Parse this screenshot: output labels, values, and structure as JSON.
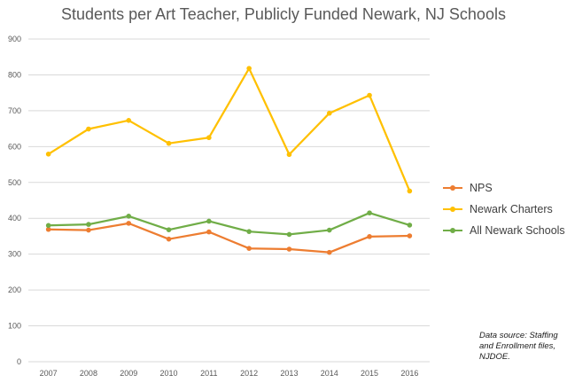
{
  "chart_data": {
    "type": "line",
    "title": "Students per Art Teacher, Publicly Funded Newark, NJ Schools",
    "xlabel": "",
    "ylabel": "",
    "categories": [
      "2007",
      "2008",
      "2009",
      "2010",
      "2011",
      "2012",
      "2013",
      "2014",
      "2015",
      "2016"
    ],
    "ylim": [
      0,
      900
    ],
    "yticks": [
      0,
      100,
      200,
      300,
      400,
      500,
      600,
      700,
      800,
      900
    ],
    "grid": true,
    "legend_position": "right",
    "series": [
      {
        "name": "NPS",
        "color": "#ED7D31",
        "values": [
          369,
          367,
          386,
          342,
          362,
          316,
          314,
          305,
          349,
          351
        ]
      },
      {
        "name": "Newark Charters",
        "color": "#FFC000",
        "values": [
          579,
          649,
          673,
          609,
          625,
          818,
          578,
          693,
          743,
          476
        ]
      },
      {
        "name": "All Newark Schools",
        "color": "#70AD47",
        "values": [
          380,
          383,
          406,
          368,
          392,
          363,
          355,
          367,
          415,
          381
        ]
      }
    ],
    "annotation": [
      "Data source: Staffing",
      "and Enrollment  files,",
      "NJDOE."
    ]
  }
}
